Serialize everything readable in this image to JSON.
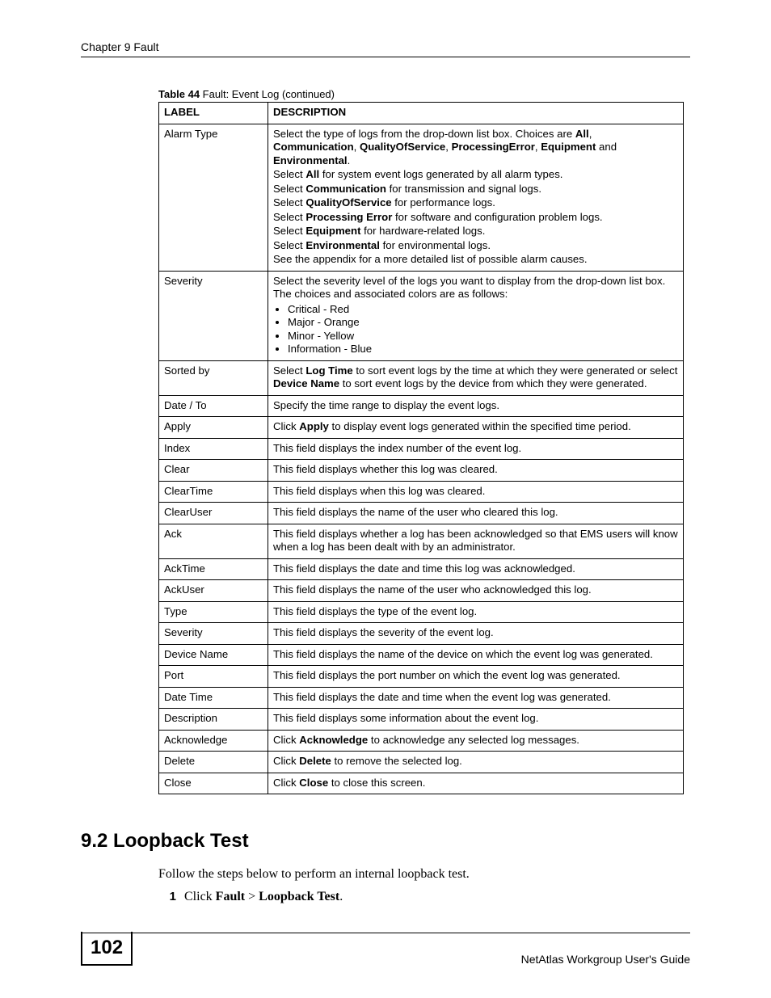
{
  "header": {
    "chapter": "Chapter 9 Fault"
  },
  "table": {
    "caption_prefix": "Table 44",
    "caption_rest": "   Fault: Event Log (continued)",
    "head_label": "LABEL",
    "head_desc": "DESCRIPTION",
    "rows": {
      "alarm_type": {
        "label": "Alarm Type",
        "p1_a": "Select the type of logs from the drop-down list box. Choices are ",
        "p1_b": "All",
        "p1_c": ", ",
        "p1_d": "Communication",
        "p1_e": ", ",
        "p1_f": "QualityOfService",
        "p1_g": ", ",
        "p1_h": "ProcessingError",
        "p1_i": ", ",
        "p1_j": "Equipment",
        "p1_k": " and ",
        "p1_l": "Environmental",
        "p1_m": ".",
        "p2_a": "Select ",
        "p2_b": "All",
        "p2_c": " for system event logs generated by all alarm types.",
        "p3_a": "Select ",
        "p3_b": "Communication",
        "p3_c": " for transmission and signal logs.",
        "p4_a": "Select ",
        "p4_b": "QualityOfService",
        "p4_c": " for performance logs.",
        "p5_a": "Select ",
        "p5_b": "Processing Error",
        "p5_c": " for software and configuration problem logs.",
        "p6_a": "Select ",
        "p6_b": "Equipment",
        "p6_c": " for hardware-related logs.",
        "p7_a": "Select ",
        "p7_b": "Environmental",
        "p7_c": " for environmental logs.",
        "p8": "See the appendix for a more detailed list of possible alarm causes."
      },
      "severity": {
        "label": "Severity",
        "intro": "Select the severity level of the logs you want to display from the drop-down list box. The choices and associated colors are as follows:",
        "b1": "Critical - Red",
        "b2": "Major - Orange",
        "b3": "Minor - Yellow",
        "b4": "Information - Blue"
      },
      "sorted_by": {
        "label": "Sorted by",
        "a": "Select ",
        "b": "Log Time",
        "c": " to sort event logs by the time at which they were generated or select ",
        "d": "Device Name",
        "e": " to sort event logs by the device from which they were generated."
      },
      "date_to": {
        "label": "Date / To",
        "desc": "Specify the time range to display the event logs."
      },
      "apply": {
        "label": "Apply",
        "a": "Click ",
        "b": "Apply",
        "c": " to display event logs generated within the specified time period."
      },
      "index": {
        "label": "Index",
        "desc": "This field displays the index number of the event log."
      },
      "clear": {
        "label": "Clear",
        "desc": "This field displays whether this log was cleared."
      },
      "cleartime": {
        "label": "ClearTime",
        "desc": "This field displays when this log was cleared."
      },
      "clearuser": {
        "label": "ClearUser",
        "desc": "This field displays the name of the user who cleared this log."
      },
      "ack": {
        "label": "Ack",
        "desc": "This field displays whether a log has been acknowledged so that EMS users will know when a log has been dealt with by an administrator."
      },
      "acktime": {
        "label": "AckTime",
        "desc": "This field displays the date and time this log was acknowledged."
      },
      "ackuser": {
        "label": "AckUser",
        "desc": "This field displays the name of the user who acknowledged this log."
      },
      "type": {
        "label": "Type",
        "desc": "This field displays the type of the event log."
      },
      "severity2": {
        "label": "Severity",
        "desc": "This field displays the severity of the event log."
      },
      "device_name": {
        "label": "Device Name",
        "desc": "This field displays the name of the device on which the event log was generated."
      },
      "port": {
        "label": "Port",
        "desc": "This field displays the port number on which the event log was generated."
      },
      "date_time": {
        "label": "Date Time",
        "desc": "This field displays the date and time when the event log was generated."
      },
      "description": {
        "label": "Description",
        "desc": "This field displays some information about the event log."
      },
      "acknowledge": {
        "label": "Acknowledge",
        "a": "Click ",
        "b": "Acknowledge",
        "c": " to acknowledge any selected log messages."
      },
      "delete": {
        "label": "Delete",
        "a": "Click ",
        "b": "Delete",
        "c": " to remove the selected log."
      },
      "close": {
        "label": "Close",
        "a": "Click ",
        "b": "Close",
        "c": " to close this screen."
      }
    }
  },
  "section": {
    "heading": "9.2  Loopback Test",
    "intro": "Follow the steps below to perform an internal loopback test.",
    "step1_num": "1",
    "step1_a": "Click ",
    "step1_b": "Fault",
    "step1_c": " > ",
    "step1_d": "Loopback Test",
    "step1_e": "."
  },
  "footer": {
    "page": "102",
    "guide": "NetAtlas Workgroup User's Guide"
  }
}
